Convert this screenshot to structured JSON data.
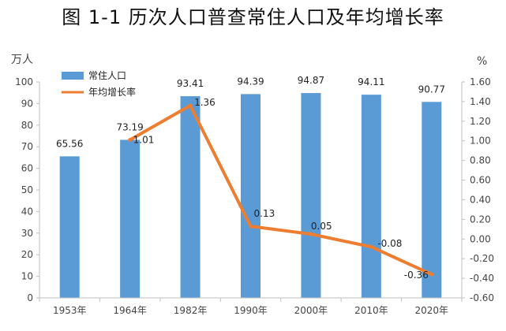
{
  "chart_data": {
    "type": "bar+line",
    "title": "图 1-1   历次人口普查常住人口及年均增长率",
    "categories": [
      "1953年",
      "1964年",
      "1982年",
      "1990年",
      "2000年",
      "2010年",
      "2020年"
    ],
    "series": [
      {
        "name": "常住人口",
        "type": "bar",
        "axis": "left",
        "values": [
          65.56,
          73.19,
          93.41,
          94.39,
          94.87,
          94.11,
          90.77
        ],
        "labels": [
          "65.56",
          "73.19",
          "93.41",
          "94.39",
          "94.87",
          "94.11",
          "90.77"
        ],
        "color": "#5B9BD5"
      },
      {
        "name": "年均增长率",
        "type": "line",
        "axis": "right",
        "values": [
          null,
          1.01,
          1.36,
          0.13,
          0.05,
          -0.08,
          -0.36
        ],
        "labels": [
          "",
          "1.01",
          "1.36",
          "0.13",
          "0.05",
          "-0.08",
          "-0.36"
        ],
        "color": "#ED7D31"
      }
    ],
    "left_axis": {
      "unit": "万人",
      "range": [
        0,
        100
      ],
      "ticks": [
        "0",
        "10",
        "20",
        "30",
        "40",
        "50",
        "60",
        "70",
        "80",
        "90",
        "100"
      ]
    },
    "right_axis": {
      "unit": "%",
      "range": [
        -0.6,
        1.6
      ],
      "ticks": [
        "-0.60",
        "-0.40",
        "-0.20",
        "0.00",
        "0.20",
        "0.40",
        "0.60",
        "0.80",
        "1.00",
        "1.20",
        "1.40",
        "1.60"
      ]
    },
    "legend_position": "top-left",
    "grid": false
  }
}
